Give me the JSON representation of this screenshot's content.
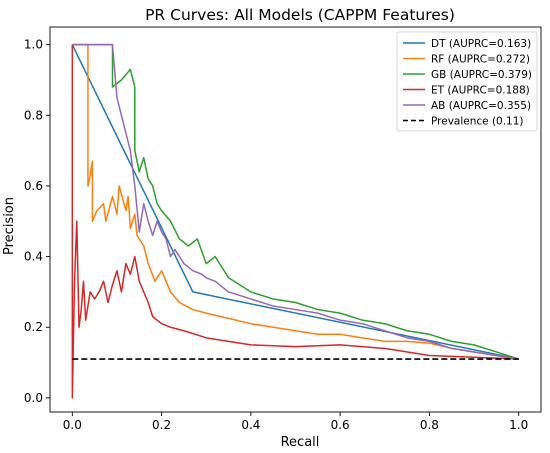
{
  "chart_data": {
    "type": "line",
    "title": "PR Curves: All Models (CAPPM Features)",
    "xlabel": "Recall",
    "ylabel": "Precision",
    "xlim": [
      -0.05,
      1.05
    ],
    "ylim": [
      -0.04,
      1.05
    ],
    "xticks": [
      "0.0",
      "0.2",
      "0.4",
      "0.6",
      "0.8",
      "1.0"
    ],
    "yticks": [
      "0.0",
      "0.2",
      "0.4",
      "0.6",
      "0.8",
      "1.0"
    ],
    "legend_position": "top-right",
    "grid": false,
    "series": [
      {
        "name": "DT (AUPRC=0.163)",
        "color": "#1f77b4",
        "style": "solid",
        "x": [
          0,
          0.27,
          1.0
        ],
        "y": [
          1.0,
          0.3,
          0.11
        ]
      },
      {
        "name": "RF (AUPRC=0.272)",
        "color": "#ff7f0e",
        "style": "solid",
        "x": [
          0,
          0.035,
          0.035,
          0.035,
          0.04,
          0.045,
          0.045,
          0.055,
          0.07,
          0.075,
          0.09,
          0.1,
          0.105,
          0.12,
          0.125,
          0.13,
          0.14,
          0.145,
          0.16,
          0.17,
          0.185,
          0.2,
          0.22,
          0.24,
          0.27,
          0.3,
          0.35,
          0.4,
          0.45,
          0.5,
          0.55,
          0.6,
          0.65,
          0.7,
          0.75,
          0.8,
          0.85,
          0.9,
          0.95,
          1.0
        ],
        "y": [
          1.0,
          1.0,
          0.85,
          0.6,
          0.63,
          0.67,
          0.5,
          0.53,
          0.55,
          0.5,
          0.57,
          0.52,
          0.6,
          0.53,
          0.57,
          0.48,
          0.52,
          0.46,
          0.43,
          0.38,
          0.33,
          0.36,
          0.3,
          0.27,
          0.25,
          0.24,
          0.225,
          0.21,
          0.2,
          0.19,
          0.18,
          0.18,
          0.17,
          0.16,
          0.16,
          0.155,
          0.14,
          0.13,
          0.12,
          0.11
        ]
      },
      {
        "name": "GB (AUPRC=0.379)",
        "color": "#2ca02c",
        "style": "solid",
        "x": [
          0,
          0.09,
          0.09,
          0.11,
          0.13,
          0.14,
          0.14,
          0.15,
          0.16,
          0.17,
          0.18,
          0.19,
          0.2,
          0.22,
          0.24,
          0.26,
          0.28,
          0.3,
          0.32,
          0.35,
          0.4,
          0.45,
          0.5,
          0.55,
          0.6,
          0.65,
          0.7,
          0.75,
          0.8,
          0.85,
          0.9,
          0.95,
          1.0
        ],
        "y": [
          1.0,
          1.0,
          0.88,
          0.9,
          0.93,
          0.88,
          0.7,
          0.64,
          0.68,
          0.62,
          0.6,
          0.55,
          0.53,
          0.5,
          0.45,
          0.43,
          0.45,
          0.38,
          0.4,
          0.34,
          0.3,
          0.28,
          0.27,
          0.25,
          0.24,
          0.22,
          0.21,
          0.19,
          0.18,
          0.16,
          0.15,
          0.13,
          0.11
        ]
      },
      {
        "name": "ET (AUPRC=0.188)",
        "color": "#d62728",
        "style": "solid",
        "x": [
          0,
          0.0,
          0.005,
          0.01,
          0.015,
          0.02,
          0.025,
          0.03,
          0.04,
          0.05,
          0.06,
          0.07,
          0.08,
          0.09,
          0.1,
          0.11,
          0.12,
          0.13,
          0.14,
          0.15,
          0.16,
          0.17,
          0.18,
          0.2,
          0.22,
          0.25,
          0.3,
          0.35,
          0.4,
          0.5,
          0.6,
          0.7,
          0.8,
          0.9,
          1.0
        ],
        "y": [
          1.0,
          0.0,
          0.33,
          0.5,
          0.2,
          0.25,
          0.33,
          0.22,
          0.3,
          0.28,
          0.3,
          0.33,
          0.27,
          0.32,
          0.36,
          0.3,
          0.38,
          0.35,
          0.4,
          0.33,
          0.3,
          0.27,
          0.23,
          0.21,
          0.2,
          0.19,
          0.17,
          0.16,
          0.15,
          0.145,
          0.15,
          0.14,
          0.12,
          0.115,
          0.11
        ]
      },
      {
        "name": "AB (AUPRC=0.355)",
        "color": "#9467bd",
        "style": "solid",
        "x": [
          0,
          0.09,
          0.1,
          0.11,
          0.12,
          0.13,
          0.14,
          0.15,
          0.16,
          0.17,
          0.18,
          0.19,
          0.2,
          0.21,
          0.22,
          0.23,
          0.25,
          0.27,
          0.29,
          0.3,
          0.32,
          0.35,
          0.4,
          0.45,
          0.5,
          0.55,
          0.6,
          0.65,
          0.7,
          0.75,
          0.8,
          0.85,
          0.9,
          0.95,
          1.0
        ],
        "y": [
          1.0,
          1.0,
          0.85,
          0.8,
          0.75,
          0.7,
          0.6,
          0.47,
          0.55,
          0.5,
          0.46,
          0.5,
          0.47,
          0.45,
          0.4,
          0.42,
          0.38,
          0.36,
          0.35,
          0.34,
          0.33,
          0.3,
          0.28,
          0.26,
          0.25,
          0.24,
          0.22,
          0.21,
          0.19,
          0.17,
          0.16,
          0.14,
          0.13,
          0.12,
          0.11
        ]
      },
      {
        "name": "Prevalence (0.11)",
        "color": "#000000",
        "style": "dashed",
        "x": [
          0,
          1.0
        ],
        "y": [
          0.11,
          0.11
        ]
      }
    ]
  }
}
